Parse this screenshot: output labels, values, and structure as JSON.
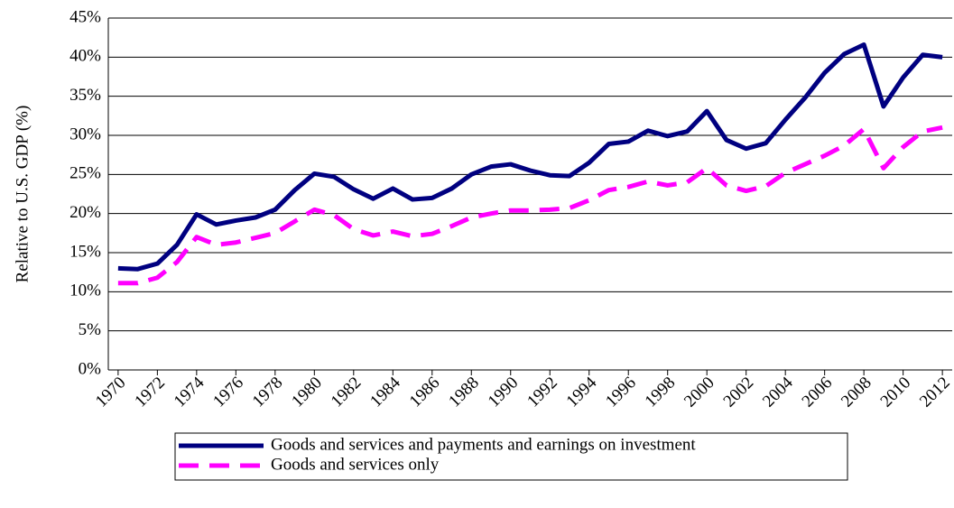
{
  "chart_data": {
    "type": "line",
    "ylabel": "Relative to U.S. GDP (%)",
    "x": [
      1970,
      1971,
      1972,
      1973,
      1974,
      1975,
      1976,
      1977,
      1978,
      1979,
      1980,
      1981,
      1982,
      1983,
      1984,
      1985,
      1986,
      1987,
      1988,
      1989,
      1990,
      1991,
      1992,
      1993,
      1994,
      1995,
      1996,
      1997,
      1998,
      1999,
      2000,
      2001,
      2002,
      2003,
      2004,
      2005,
      2006,
      2007,
      2008,
      2009,
      2010,
      2011,
      2012
    ],
    "xlim": [
      1969.5,
      2012.5
    ],
    "xticks": [
      1970,
      1972,
      1974,
      1976,
      1978,
      1980,
      1982,
      1984,
      1986,
      1988,
      1990,
      1992,
      1994,
      1996,
      1998,
      2000,
      2002,
      2004,
      2006,
      2008,
      2010,
      2012
    ],
    "ylim": [
      0,
      45
    ],
    "yticks": [
      {
        "value": 0,
        "label": "0%"
      },
      {
        "value": 5,
        "label": "5%"
      },
      {
        "value": 10,
        "label": "10%"
      },
      {
        "value": 15,
        "label": "15%"
      },
      {
        "value": 20,
        "label": "20%"
      },
      {
        "value": 25,
        "label": "25%"
      },
      {
        "value": 30,
        "label": "30%"
      },
      {
        "value": 35,
        "label": "35%"
      },
      {
        "value": 40,
        "label": "40%"
      },
      {
        "value": 45,
        "label": "45%"
      }
    ],
    "grid": true,
    "legend": "bottom",
    "series": [
      {
        "name": "Goods and services and payments and earnings on investment",
        "color": "#000080",
        "style": "solid",
        "values": [
          13.0,
          12.9,
          13.6,
          16.0,
          19.9,
          18.6,
          19.1,
          19.5,
          20.5,
          23.0,
          25.1,
          24.7,
          23.1,
          21.9,
          23.2,
          21.8,
          22.0,
          23.2,
          25.0,
          26.0,
          26.3,
          25.5,
          24.9,
          24.8,
          26.5,
          28.9,
          29.2,
          30.6,
          29.9,
          30.5,
          33.1,
          29.4,
          28.3,
          29.0,
          32.0,
          34.8,
          38.0,
          40.4,
          41.6,
          33.7,
          37.4,
          40.3,
          40.0
        ]
      },
      {
        "name": "Goods and services only",
        "color": "#ff00ff",
        "style": "dashed",
        "values": [
          11.1,
          11.1,
          11.8,
          13.8,
          17.0,
          16.0,
          16.3,
          16.9,
          17.5,
          19.0,
          20.5,
          19.8,
          18.0,
          17.2,
          17.7,
          17.1,
          17.4,
          18.4,
          19.5,
          20.0,
          20.4,
          20.4,
          20.5,
          20.7,
          21.7,
          23.0,
          23.4,
          24.1,
          23.6,
          24.0,
          25.8,
          23.6,
          22.9,
          23.5,
          25.2,
          26.3,
          27.4,
          28.7,
          30.8,
          25.8,
          28.5,
          30.5,
          31.0
        ]
      }
    ]
  }
}
